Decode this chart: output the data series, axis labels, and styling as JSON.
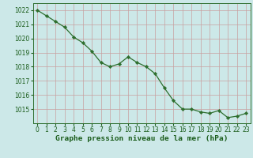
{
  "x": [
    0,
    1,
    2,
    3,
    4,
    5,
    6,
    7,
    8,
    9,
    10,
    11,
    12,
    13,
    14,
    15,
    16,
    17,
    18,
    19,
    20,
    21,
    22,
    23
  ],
  "y": [
    1022.0,
    1021.6,
    1021.2,
    1020.8,
    1020.1,
    1019.7,
    1019.1,
    1018.3,
    1018.0,
    1018.2,
    1018.7,
    1018.3,
    1018.0,
    1017.5,
    1016.5,
    1015.6,
    1015.0,
    1015.0,
    1014.8,
    1014.7,
    1014.9,
    1014.4,
    1014.5,
    1014.7
  ],
  "line_color": "#2d6e2d",
  "marker": "D",
  "marker_size": 2.2,
  "bg_color": "#cce8e8",
  "grid_color_major": "#c8a0a0",
  "grid_color_minor": "#c8a0a0",
  "ylim_min": 1014.0,
  "ylim_max": 1022.5,
  "yticks": [
    1015,
    1016,
    1017,
    1018,
    1019,
    1020,
    1021,
    1022
  ],
  "xlabel": "Graphe pression niveau de la mer (hPa)",
  "xlabel_color": "#1a5c1a",
  "axis_color": "#2d6e2d",
  "tick_color": "#1a5c1a",
  "tick_fontsize": 5.5,
  "xlabel_fontsize": 6.8,
  "linewidth": 0.9
}
